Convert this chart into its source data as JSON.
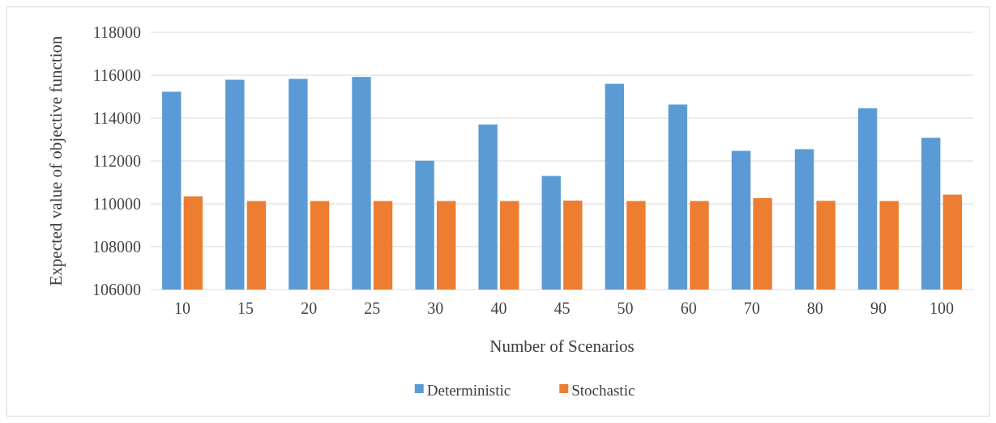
{
  "chart_data": {
    "type": "bar",
    "xlabel": "Number of Scenarios",
    "ylabel": "Expected value of objective function",
    "categories": [
      "10",
      "15",
      "20",
      "25",
      "30",
      "40",
      "45",
      "50",
      "60",
      "70",
      "80",
      "90",
      "100"
    ],
    "series": [
      {
        "name": "Deterministic",
        "color": "#5b9bd5",
        "values": [
          115230,
          115790,
          115830,
          115920,
          112010,
          113700,
          111300,
          115600,
          114630,
          112470,
          112550,
          114460,
          113080
        ]
      },
      {
        "name": "Stochastic",
        "color": "#ed7d31",
        "values": [
          110350,
          110130,
          110130,
          110130,
          110130,
          110130,
          110150,
          110130,
          110130,
          110270,
          110140,
          110130,
          110430
        ]
      }
    ],
    "ylim": [
      106000,
      118000
    ],
    "yticks": [
      106000,
      108000,
      110000,
      112000,
      114000,
      116000,
      118000
    ],
    "grid": "y",
    "legend": "bottom"
  }
}
